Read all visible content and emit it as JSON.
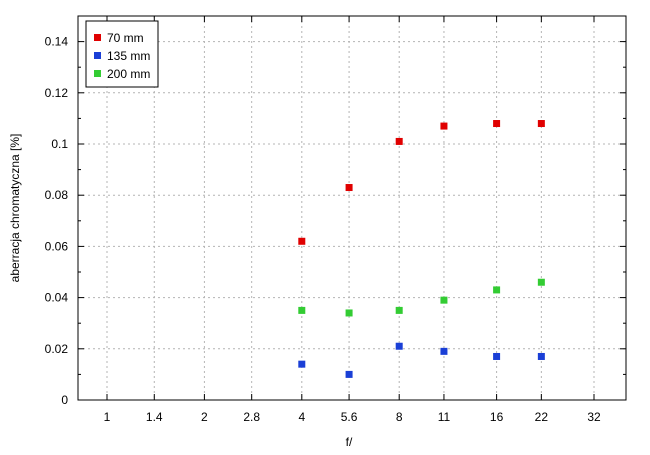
{
  "chart_data": {
    "type": "scatter",
    "xlabel": "f/",
    "ylabel": "aberracja chromatyczna [%]",
    "x_ticks": [
      "1",
      "1.4",
      "2",
      "2.8",
      "4",
      "5.6",
      "8",
      "11",
      "16",
      "22",
      "32"
    ],
    "y_ticks": [
      "0",
      "0.02",
      "0.04",
      "0.06",
      "0.08",
      "0.1",
      "0.12",
      "0.14"
    ],
    "ylim": [
      0,
      0.15
    ],
    "x_scale": "log (f-stop)",
    "grid": true,
    "legend_position": "top-left",
    "series": [
      {
        "name": "70 mm",
        "color": "#e00000",
        "points": [
          {
            "x": "4",
            "y": 0.062
          },
          {
            "x": "5.6",
            "y": 0.083
          },
          {
            "x": "8",
            "y": 0.101
          },
          {
            "x": "11",
            "y": 0.107
          },
          {
            "x": "16",
            "y": 0.108
          },
          {
            "x": "22",
            "y": 0.108
          }
        ]
      },
      {
        "name": "135 mm",
        "color": "#1a3fd6",
        "points": [
          {
            "x": "4",
            "y": 0.014
          },
          {
            "x": "5.6",
            "y": 0.01
          },
          {
            "x": "8",
            "y": 0.021
          },
          {
            "x": "11",
            "y": 0.019
          },
          {
            "x": "16",
            "y": 0.017
          },
          {
            "x": "22",
            "y": 0.017
          }
        ]
      },
      {
        "name": "200 mm",
        "color": "#33cc33",
        "points": [
          {
            "x": "4",
            "y": 0.035
          },
          {
            "x": "5.6",
            "y": 0.034
          },
          {
            "x": "8",
            "y": 0.035
          },
          {
            "x": "11",
            "y": 0.039
          },
          {
            "x": "16",
            "y": 0.043
          },
          {
            "x": "22",
            "y": 0.046
          }
        ]
      }
    ]
  }
}
